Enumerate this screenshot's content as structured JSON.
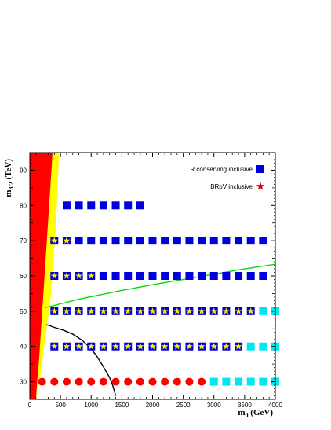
{
  "chart_data": {
    "type": "scatter",
    "xlabel": {
      "main": "m",
      "sub": "0",
      "unit": " (GeV)"
    },
    "ylabel": {
      "main": "m",
      "sub": "3/2",
      "unit": " (TeV)"
    },
    "xlim": [
      0,
      4000
    ],
    "ylim": [
      25,
      95
    ],
    "x_ticks": [
      0,
      500,
      1000,
      1500,
      2000,
      2500,
      3000,
      3500,
      4000
    ],
    "y_ticks": [
      30,
      40,
      50,
      60,
      70,
      80,
      90
    ],
    "legend": {
      "placement": "top-right",
      "entries": [
        {
          "label": "R conserving inclusive",
          "marker": "square",
          "color": "#0000dd"
        },
        {
          "label": "BRpV inclusive",
          "marker": "star",
          "color": "#dd0000"
        }
      ]
    },
    "colors": {
      "blue_square": "#0000dd",
      "cyan_square": "#00e8ee",
      "red_dot": "#ff0000",
      "yellow_star": "#ffee00",
      "excluded_red": "#ff0000",
      "excluded_yellow": "#ffff00",
      "green_curve": "#00dd00",
      "black_curve": "#000000"
    },
    "series": [
      {
        "marker": "square",
        "color": "#0000dd",
        "y": 80,
        "x": [
          600,
          800,
          1000,
          1200,
          1400,
          1600,
          1800
        ]
      },
      {
        "marker": "square",
        "color": "#0000dd",
        "y": 70,
        "x": [
          400,
          600,
          800,
          1000,
          1200,
          1400,
          1600,
          1800,
          2000,
          2200,
          2400,
          2600,
          2800,
          3000,
          3200,
          3400,
          3600,
          3800
        ]
      },
      {
        "marker": "square",
        "color": "#0000dd",
        "y": 60,
        "x": [
          400,
          600,
          800,
          1000,
          1200,
          1400,
          1600,
          1800,
          2000,
          2200,
          2400,
          2600,
          2800,
          3000,
          3200,
          3400,
          3600,
          3800
        ]
      },
      {
        "marker": "square",
        "color": "#0000dd",
        "y": 50,
        "x": [
          400,
          600,
          800,
          1000,
          1200,
          1400,
          1600,
          1800,
          2000,
          2200,
          2400,
          2600,
          2800,
          3000,
          3200,
          3400,
          3600
        ]
      },
      {
        "marker": "square",
        "color": "#00e8ee",
        "y": 50,
        "x": [
          3800,
          4000
        ]
      },
      {
        "marker": "square",
        "color": "#0000dd",
        "y": 40,
        "x": [
          400,
          600,
          800,
          1000,
          1200,
          1400,
          1600,
          1800,
          2000,
          2200,
          2400,
          2600,
          2800,
          3000,
          3200,
          3400
        ]
      },
      {
        "marker": "square",
        "color": "#00e8ee",
        "y": 40,
        "x": [
          3600,
          3800,
          4000
        ]
      },
      {
        "marker": "circle",
        "color": "#ff0000",
        "y": 30,
        "x": [
          200,
          400,
          600,
          800,
          1000,
          1200,
          1400,
          1600,
          1800,
          2000,
          2200,
          2400,
          2600,
          2800
        ]
      },
      {
        "marker": "square",
        "color": "#00e8ee",
        "y": 30,
        "x": [
          3000,
          3200,
          3400,
          3600,
          3800,
          4000
        ]
      },
      {
        "marker": "star",
        "color": "#ffee00",
        "y": 70,
        "x": [
          400,
          600
        ]
      },
      {
        "marker": "star",
        "color": "#ffee00",
        "y": 60,
        "x": [
          400,
          600,
          800,
          1000
        ]
      },
      {
        "marker": "star",
        "color": "#ffee00",
        "y": 50,
        "x": [
          400,
          600,
          800,
          1000,
          1200,
          1400,
          1600,
          1800,
          2000,
          2200,
          2400,
          2600,
          2800,
          3000,
          3200,
          3400,
          3600
        ]
      },
      {
        "marker": "star",
        "color": "#ffee00",
        "y": 40,
        "x": [
          400,
          600,
          800,
          1000,
          1200,
          1400,
          1600,
          1800,
          2000,
          2200,
          2400,
          2600,
          2800,
          3000,
          3200,
          3400
        ]
      }
    ],
    "curves": [
      {
        "color": "#00dd00",
        "points": [
          [
            250,
            51
          ],
          [
            800,
            53.4
          ],
          [
            1500,
            55.9
          ],
          [
            2000,
            57.5
          ],
          [
            2500,
            59
          ],
          [
            3000,
            60.5
          ],
          [
            3500,
            62
          ],
          [
            4000,
            63.3
          ]
        ]
      },
      {
        "color": "#000000",
        "points": [
          [
            270,
            46.2
          ],
          [
            400,
            45.4
          ],
          [
            550,
            44.6
          ],
          [
            700,
            43.5
          ],
          [
            850,
            41.8
          ],
          [
            1000,
            39.4
          ],
          [
            1100,
            37
          ],
          [
            1200,
            34.2
          ],
          [
            1300,
            31.2
          ],
          [
            1350,
            29
          ],
          [
            1400,
            26
          ]
        ]
      }
    ],
    "excluded_regions": [
      {
        "color": "#ffff00",
        "boundary": [
          [
            100,
            25
          ],
          [
            160,
            30
          ],
          [
            220,
            38
          ],
          [
            280,
            46
          ],
          [
            330,
            52
          ],
          [
            370,
            60
          ],
          [
            400,
            68
          ],
          [
            430,
            76
          ],
          [
            450,
            84
          ],
          [
            470,
            92
          ],
          [
            480,
            95
          ]
        ]
      },
      {
        "color": "#ff0000",
        "boundary": [
          [
            100,
            25
          ],
          [
            120,
            30
          ],
          [
            150,
            36
          ],
          [
            180,
            44
          ],
          [
            210,
            52
          ],
          [
            240,
            60
          ],
          [
            270,
            68
          ],
          [
            300,
            76
          ],
          [
            330,
            84
          ],
          [
            360,
            92
          ],
          [
            370,
            95
          ]
        ]
      }
    ]
  }
}
